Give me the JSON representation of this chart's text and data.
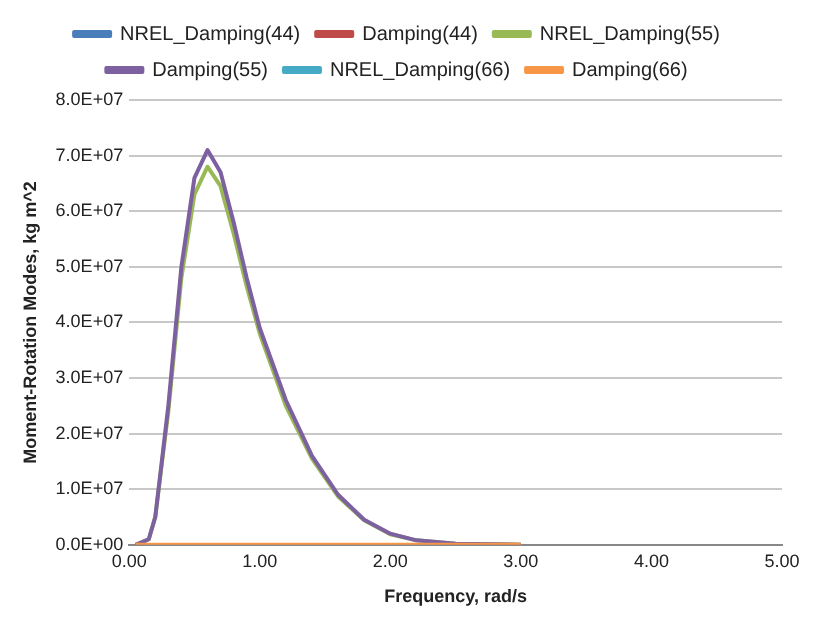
{
  "chart_data": {
    "type": "line",
    "xlabel": "Frequency, rad/s",
    "ylabel": "Moment-Rotation Modes, kg m^2",
    "xlim": [
      0,
      5
    ],
    "xticks": [
      {
        "value": 0,
        "label": "0.00"
      },
      {
        "value": 1,
        "label": "1.00"
      },
      {
        "value": 2,
        "label": "2.00"
      },
      {
        "value": 3,
        "label": "3.00"
      },
      {
        "value": 4,
        "label": "4.00"
      },
      {
        "value": 5,
        "label": "5.00"
      }
    ],
    "ylim": [
      0,
      80000000
    ],
    "yticks": [
      {
        "value": 0,
        "label": "0.0E+00"
      },
      {
        "value": 10000000,
        "label": "1.0E+07"
      },
      {
        "value": 20000000,
        "label": "2.0E+07"
      },
      {
        "value": 30000000,
        "label": "3.0E+07"
      },
      {
        "value": 40000000,
        "label": "4.0E+07"
      },
      {
        "value": 50000000,
        "label": "5.0E+07"
      },
      {
        "value": 60000000,
        "label": "6.0E+07"
      },
      {
        "value": 70000000,
        "label": "7.0E+07"
      },
      {
        "value": 80000000,
        "label": "8.0E+07"
      }
    ],
    "x": [
      0.05,
      0.15,
      0.2,
      0.3,
      0.4,
      0.5,
      0.6,
      0.7,
      0.8,
      0.9,
      1.0,
      1.2,
      1.4,
      1.6,
      1.8,
      2.0,
      2.2,
      2.5,
      3.0
    ],
    "grid": "y",
    "legend": "top",
    "marker": "none",
    "line_style": "solid",
    "series": [
      {
        "name": "NREL_Damping(44)",
        "color": "#4a7ebb",
        "values": [
          null,
          null,
          null,
          null,
          null,
          null,
          null,
          null,
          null,
          null,
          null,
          null,
          null,
          null,
          null,
          null,
          null,
          null,
          null
        ]
      },
      {
        "name": "Damping(44)",
        "color": "#be4b48",
        "values": [
          null,
          null,
          null,
          null,
          null,
          null,
          null,
          null,
          null,
          null,
          null,
          null,
          null,
          null,
          null,
          null,
          null,
          null,
          null
        ]
      },
      {
        "name": "NREL_Damping(55)",
        "color": "#98b954",
        "values": [
          0,
          1000000,
          5000000,
          24000000,
          48000000,
          63000000,
          68000000,
          64500000,
          56000000,
          46500000,
          38000000,
          25000000,
          15500000,
          8700000,
          4400000,
          1900000,
          800000,
          200000,
          0
        ]
      },
      {
        "name": "Damping(55)",
        "color": "#7d60a0",
        "values": [
          0,
          1000000,
          5000000,
          25000000,
          50000000,
          66000000,
          71000000,
          67000000,
          58000000,
          48000000,
          39000000,
          26000000,
          16000000,
          9000000,
          4500000,
          2000000,
          800000,
          200000,
          0
        ]
      },
      {
        "name": "NREL_Damping(66)",
        "color": "#46aac5",
        "values": [
          null,
          null,
          null,
          null,
          null,
          null,
          null,
          null,
          null,
          null,
          null,
          null,
          null,
          null,
          null,
          null,
          null,
          null,
          null
        ]
      },
      {
        "name": "Damping(66)",
        "color": "#f79646",
        "values": [
          0,
          0,
          0,
          0,
          0,
          0,
          0,
          0,
          0,
          0,
          0,
          0,
          0,
          0,
          0,
          0,
          0,
          0,
          0
        ]
      }
    ]
  }
}
